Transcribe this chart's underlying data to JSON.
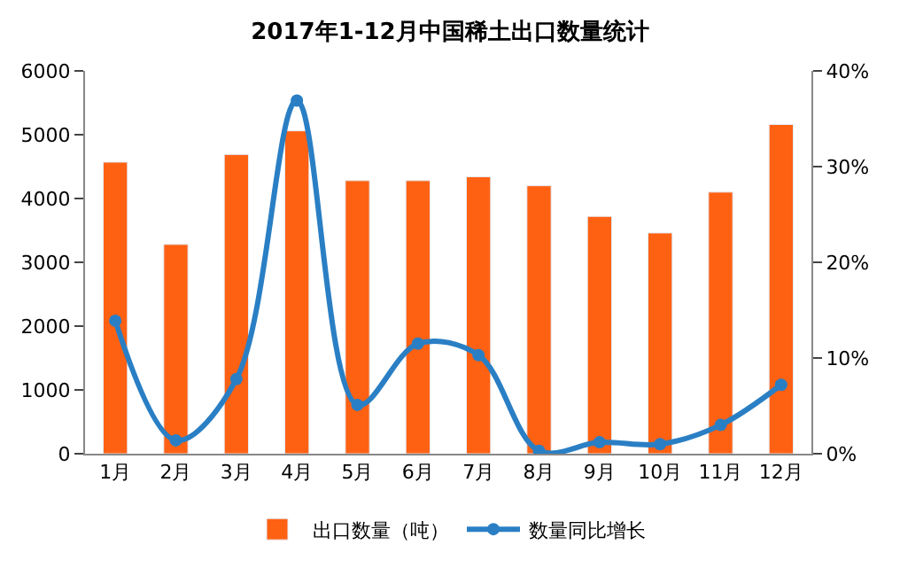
{
  "chart_data": {
    "type": "bar",
    "title": "2017年1-12月中国稀土出口数量统计",
    "categories": [
      "1月",
      "2月",
      "3月",
      "4月",
      "5月",
      "6月",
      "7月",
      "8月",
      "9月",
      "10月",
      "11月",
      "12月"
    ],
    "series": [
      {
        "name": "出口数量（吨）",
        "color": "#ff6113",
        "values": [
          4570,
          3280,
          4690,
          5060,
          4280,
          4280,
          4340,
          4200,
          3720,
          3460,
          4100,
          5160
        ]
      },
      {
        "name": "数量同比增长",
        "type": "line",
        "axis": "y2",
        "color": "#2a7fc4",
        "values": [
          13.9,
          1.4,
          7.8,
          36.9,
          5.1,
          11.5,
          10.3,
          0.3,
          1.2,
          1.0,
          3.0,
          7.2
        ]
      }
    ],
    "ylim": [
      0,
      6000
    ],
    "yticks": [
      0,
      1000,
      2000,
      3000,
      4000,
      5000,
      6000
    ],
    "y2lim": [
      0,
      40
    ],
    "y2ticks": [
      {
        "value": 0,
        "label": "0%"
      },
      {
        "value": 10,
        "label": "10%"
      },
      {
        "value": 20,
        "label": "20%"
      },
      {
        "value": 30,
        "label": "30%"
      },
      {
        "value": 40,
        "label": "40%"
      }
    ],
    "marker": "circle",
    "line_style": "solid",
    "legend": "bottom"
  }
}
